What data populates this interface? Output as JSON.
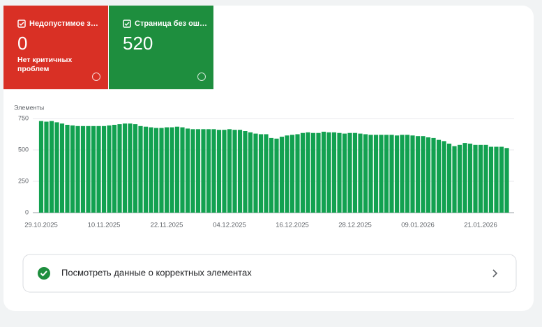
{
  "tiles": [
    {
      "label": "Недопустимое з…",
      "value": 0,
      "description": "Нет критичных проблем",
      "color": "#d93025"
    },
    {
      "label": "Страница без ош…",
      "value": 520,
      "color": "#1e8e3e"
    }
  ],
  "chart_data": {
    "type": "bar",
    "y_label": "Элементы",
    "color": "#12a150",
    "categories": [
      "29.10.2025",
      null,
      null,
      null,
      null,
      null,
      null,
      null,
      null,
      null,
      null,
      null,
      "10.11.2025",
      null,
      null,
      null,
      null,
      null,
      null,
      null,
      null,
      null,
      null,
      null,
      "22.11.2025",
      null,
      null,
      null,
      null,
      null,
      null,
      null,
      null,
      null,
      null,
      null,
      "04.12.2025",
      null,
      null,
      null,
      null,
      null,
      null,
      null,
      null,
      null,
      null,
      null,
      "16.12.2025",
      null,
      null,
      null,
      null,
      null,
      null,
      null,
      null,
      null,
      null,
      null,
      "28.12.2025",
      null,
      null,
      null,
      null,
      null,
      null,
      null,
      null,
      null,
      null,
      null,
      "09.01.2026",
      null,
      null,
      null,
      null,
      null,
      null,
      null,
      null,
      null,
      null,
      null,
      "21.01.2026",
      null,
      null,
      null,
      null,
      null
    ],
    "values": [
      730,
      725,
      730,
      720,
      710,
      700,
      695,
      690,
      690,
      690,
      690,
      690,
      690,
      695,
      700,
      705,
      710,
      710,
      705,
      690,
      685,
      680,
      675,
      675,
      680,
      680,
      685,
      680,
      670,
      665,
      665,
      665,
      665,
      665,
      660,
      660,
      665,
      660,
      660,
      650,
      640,
      630,
      625,
      625,
      595,
      590,
      605,
      615,
      620,
      625,
      635,
      640,
      635,
      635,
      645,
      640,
      640,
      635,
      630,
      635,
      635,
      630,
      625,
      620,
      620,
      620,
      620,
      620,
      615,
      620,
      620,
      615,
      610,
      610,
      600,
      595,
      580,
      570,
      550,
      530,
      540,
      555,
      550,
      540,
      540,
      540,
      525,
      525,
      525,
      515
    ],
    "ylim": [
      0,
      750
    ],
    "yticks": [
      0,
      250,
      500,
      750
    ],
    "grid": true
  },
  "link": {
    "text": "Посмотреть данные о корректных элементах"
  }
}
